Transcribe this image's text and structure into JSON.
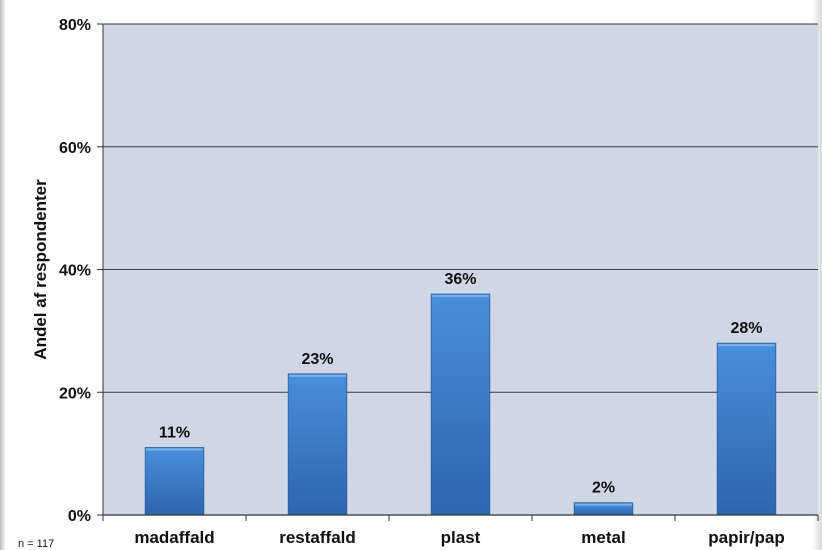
{
  "chart_data": {
    "type": "bar",
    "categories": [
      "madaffald",
      "restaffald",
      "plast",
      "metal",
      "papir/pap"
    ],
    "values": [
      11,
      23,
      36,
      2,
      28
    ],
    "data_labels": [
      "11%",
      "23%",
      "36%",
      "2%",
      "28%"
    ],
    "ylabel": "Andel af respondenter",
    "xlabel": "",
    "ylim": [
      0,
      80
    ],
    "yticks": [
      0,
      20,
      40,
      60,
      80
    ],
    "ytick_labels": [
      "0%",
      "20%",
      "40%",
      "60%",
      "80%"
    ],
    "grid": true,
    "legend": "none",
    "note": "n = 117",
    "colors": {
      "plot_background": "#cfd7e6",
      "bar_top": "#4a8fdc",
      "bar_bottom": "#2c65ad",
      "gridline": "#3b3b3b"
    }
  }
}
